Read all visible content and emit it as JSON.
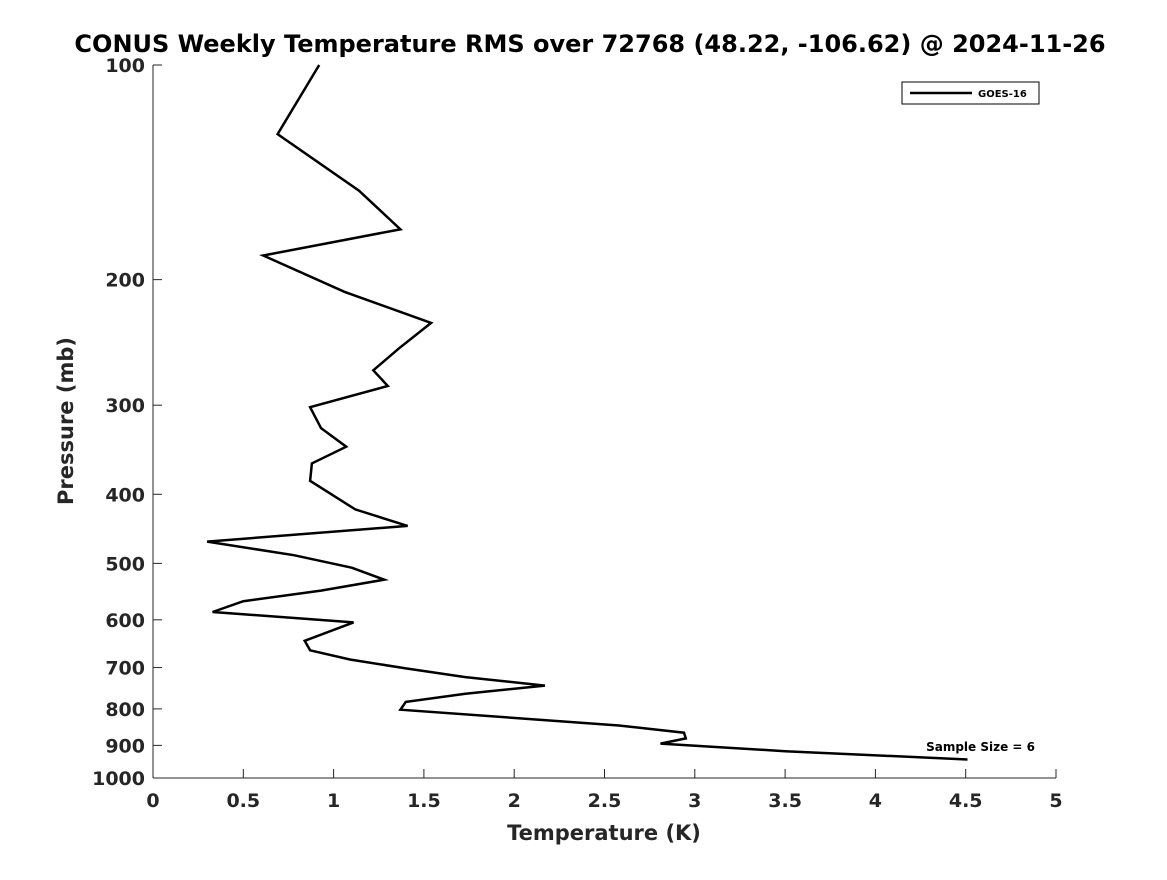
{
  "chart_data": {
    "type": "line",
    "title": "CONUS Weekly Temperature RMS over 72768 (48.22, -106.62) @ 2024-11-26",
    "xlabel": "Temperature (K)",
    "ylabel": "Pressure (mb)",
    "xlim": [
      0,
      5
    ],
    "ylim": [
      100,
      1000
    ],
    "y_scale": "log",
    "y_reversed": true,
    "grid": false,
    "legend_position": "top-right",
    "x_ticks": [
      "0",
      "0.5",
      "1",
      "1.5",
      "2",
      "2.5",
      "3",
      "3.5",
      "4",
      "4.5",
      "5"
    ],
    "y_ticks": [
      "100",
      "200",
      "300",
      "400",
      "500",
      "600",
      "700",
      "800",
      "900",
      "1000"
    ],
    "series": [
      {
        "name": "GOES-16",
        "color": "#000000",
        "points": [
          {
            "x": 0.92,
            "y": 100
          },
          {
            "x": 0.69,
            "y": 125
          },
          {
            "x": 1.14,
            "y": 150
          },
          {
            "x": 1.37,
            "y": 170
          },
          {
            "x": 0.61,
            "y": 185
          },
          {
            "x": 1.06,
            "y": 208
          },
          {
            "x": 1.54,
            "y": 230
          },
          {
            "x": 1.36,
            "y": 250
          },
          {
            "x": 1.22,
            "y": 268
          },
          {
            "x": 1.3,
            "y": 282
          },
          {
            "x": 0.87,
            "y": 302
          },
          {
            "x": 0.93,
            "y": 323
          },
          {
            "x": 1.07,
            "y": 343
          },
          {
            "x": 0.88,
            "y": 362
          },
          {
            "x": 0.87,
            "y": 383
          },
          {
            "x": 1.12,
            "y": 420
          },
          {
            "x": 1.41,
            "y": 443
          },
          {
            "x": 0.3,
            "y": 466
          },
          {
            "x": 0.78,
            "y": 487
          },
          {
            "x": 1.1,
            "y": 507
          },
          {
            "x": 1.28,
            "y": 527
          },
          {
            "x": 0.93,
            "y": 546
          },
          {
            "x": 0.5,
            "y": 565
          },
          {
            "x": 0.33,
            "y": 585
          },
          {
            "x": 1.11,
            "y": 605
          },
          {
            "x": 0.84,
            "y": 642
          },
          {
            "x": 0.87,
            "y": 662
          },
          {
            "x": 1.09,
            "y": 682
          },
          {
            "x": 1.4,
            "y": 702
          },
          {
            "x": 1.73,
            "y": 722
          },
          {
            "x": 2.17,
            "y": 742
          },
          {
            "x": 1.73,
            "y": 762
          },
          {
            "x": 1.4,
            "y": 782
          },
          {
            "x": 1.37,
            "y": 802
          },
          {
            "x": 2.58,
            "y": 844
          },
          {
            "x": 2.94,
            "y": 864
          },
          {
            "x": 2.95,
            "y": 880
          },
          {
            "x": 2.81,
            "y": 895
          },
          {
            "x": 3.5,
            "y": 917
          },
          {
            "x": 4.51,
            "y": 942
          }
        ]
      }
    ],
    "annotations": [
      {
        "text": "Sample Size = 6"
      }
    ]
  }
}
